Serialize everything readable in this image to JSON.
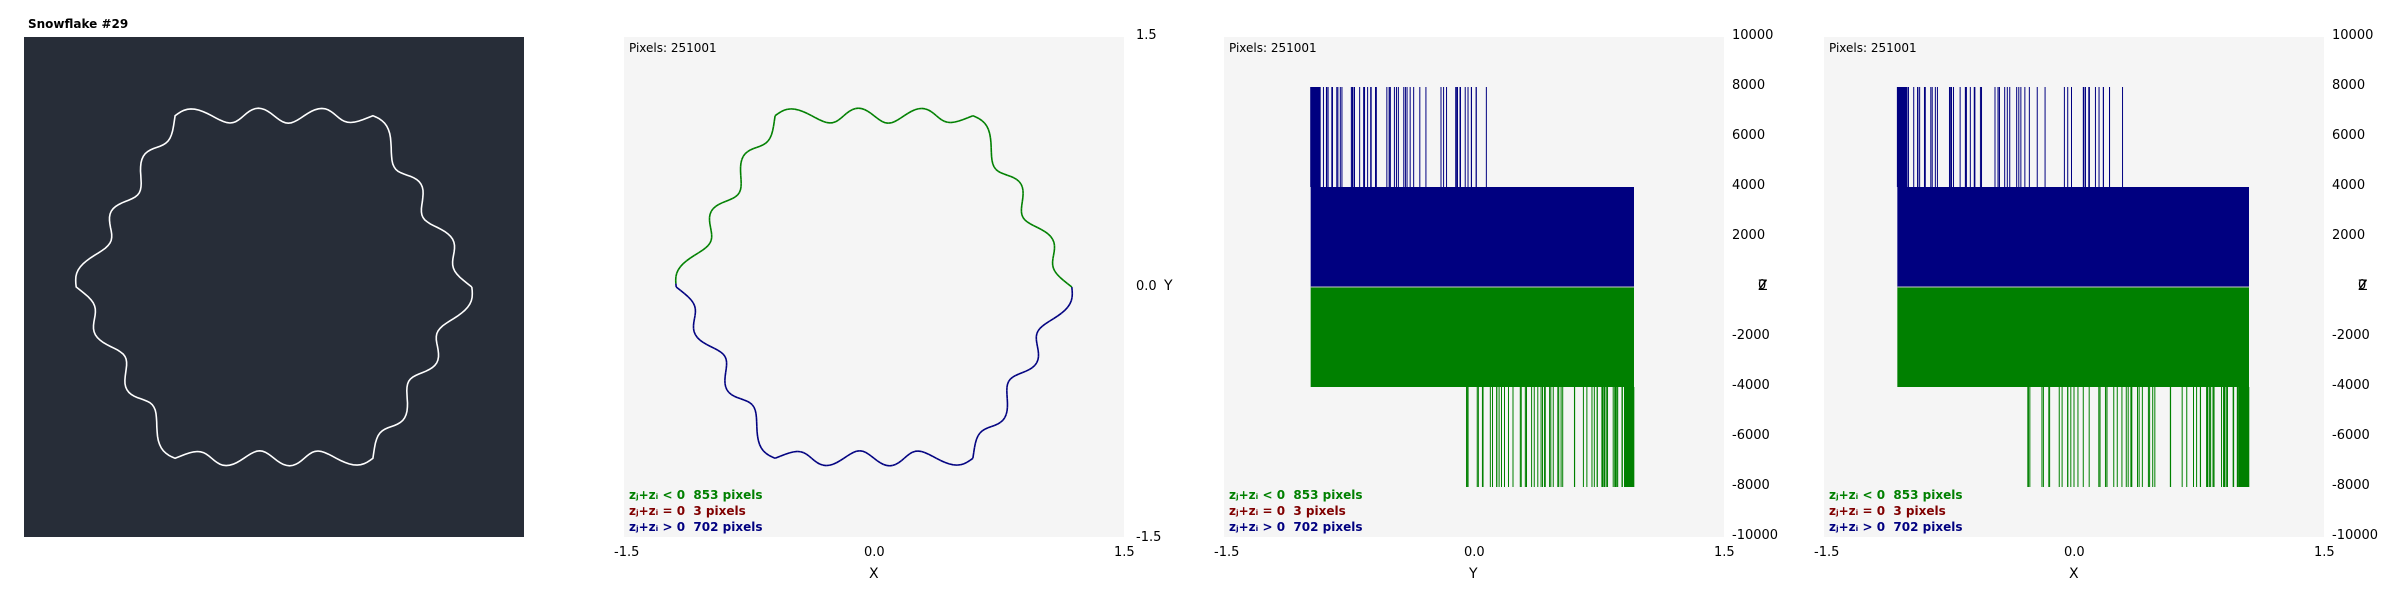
{
  "window": {
    "title": "Snowflake #29"
  },
  "colors": {
    "dark_bg": "#272d38",
    "plot_bg": "#f5f5f5",
    "green": "#008000",
    "blue": "#000080",
    "red": "#800000",
    "curve_white": "#ffffff"
  },
  "legend": [
    {
      "label": "zⱼ+zᵢ < 0",
      "count": "853 pixels",
      "color": "#008000"
    },
    {
      "label": "zⱼ+zᵢ = 0",
      "count": "3 pixels",
      "color": "#800000"
    },
    {
      "label": "zⱼ+zᵢ > 0",
      "count": "702 pixels",
      "color": "#000080"
    }
  ],
  "chart_data": [
    {
      "type": "line",
      "title": "Snowflake #29",
      "description_shape": "snowflake-outline",
      "curve_points": 128
    },
    {
      "type": "scatter",
      "pixels_label": "Pixels: 251001",
      "xlabel": "X",
      "ylabel": "Y",
      "xlim": [
        -1.5,
        1.5
      ],
      "ylim": [
        -1.5,
        1.5
      ],
      "x_ticks": [
        "-1.5",
        "0.0",
        "1.5"
      ],
      "y_ticks": [
        "1.5",
        "0.0",
        "-1.5"
      ]
    },
    {
      "type": "bar",
      "pixels_label": "Pixels: 251001",
      "xlabel": "Y",
      "ylabel": "Z",
      "xlim": [
        -1.5,
        1.5
      ],
      "ylim": [
        -10000,
        10000
      ],
      "x_ticks": [
        "-1.5",
        "0.0",
        "1.5"
      ],
      "y_ticks": [
        "10000",
        "8000",
        "6000",
        "4000",
        "2000",
        "0",
        "-2000",
        "-4000",
        "-6000",
        "-8000",
        "-10000"
      ],
      "blue_block": {
        "x": [
          -0.98,
          0.96
        ],
        "y": [
          0,
          4000
        ]
      },
      "green_block": {
        "x": [
          -0.98,
          0.96
        ],
        "y": [
          -4000,
          0
        ]
      },
      "blue_spike_range": [
        -0.98,
        0.12
      ],
      "green_spike_range": [
        -0.1,
        0.96
      ],
      "spike_level": 8000
    },
    {
      "type": "bar",
      "pixels_label": "Pixels: 251001",
      "xlabel": "X",
      "ylabel": "Z",
      "xlim": [
        -1.5,
        1.5
      ],
      "ylim": [
        -10000,
        10000
      ],
      "x_ticks": [
        "-1.5",
        "0.0",
        "1.5"
      ],
      "y_ticks": [
        "10000",
        "8000",
        "6000",
        "4000",
        "2000",
        "0",
        "-2000",
        "-4000",
        "-6000",
        "-8000",
        "-10000"
      ],
      "blue_block": {
        "x": [
          -1.06,
          1.05
        ],
        "y": [
          0,
          4000
        ]
      },
      "green_block": {
        "x": [
          -1.06,
          1.05
        ],
        "y": [
          -4000,
          0
        ]
      },
      "blue_spike_range": [
        -1.06,
        0.35
      ],
      "green_spike_range": [
        -0.35,
        1.05
      ],
      "spike_level": 8000
    }
  ]
}
